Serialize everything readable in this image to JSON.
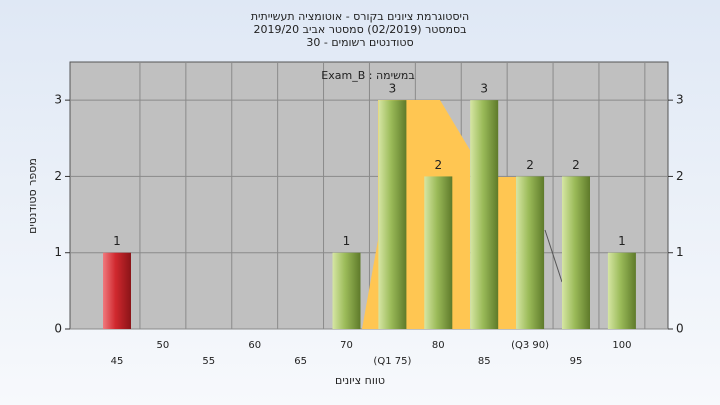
{
  "chart_data": {
    "type": "bar",
    "title": [
      "היסטוגרמת ציונים בקורס - אוטומציה תעשייתית",
      "בסמסטר  (02/2019)  סמסטר אביב 2019/20",
      "סטודנטים רשומים - 30"
    ],
    "legend_text": "במשימה : Exam_B",
    "x_label": "טווח ציונים",
    "y_label": "מספר סטודנטים",
    "categories": [
      "45",
      "50",
      "55",
      "60",
      "65",
      "70",
      "(Q1 75)",
      "80",
      "85",
      "(Q3 90)",
      "95",
      "100"
    ],
    "values": [
      1,
      0,
      0,
      0,
      0,
      1,
      3,
      2,
      3,
      2,
      2,
      1
    ],
    "colors": [
      "#d0282e",
      "#9bbb59",
      "#9bbb59",
      "#9bbb59",
      "#9bbb59",
      "#9bbb59",
      "#9bbb59",
      "#9bbb59",
      "#9bbb59",
      "#9bbb59",
      "#9bbb59",
      "#9bbb59"
    ],
    "ylim": [
      0,
      3.5
    ],
    "yticks": [
      0,
      1,
      2,
      3
    ],
    "grid": true
  }
}
